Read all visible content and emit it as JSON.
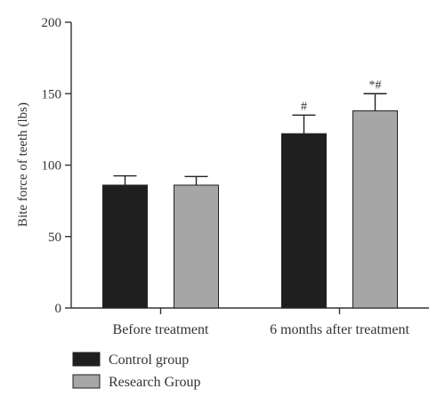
{
  "chart_data": {
    "type": "bar",
    "title": "",
    "xlabel": "",
    "ylabel": "Bite force of teeth (lbs)",
    "ylim": [
      0,
      200
    ],
    "yticks": [
      0,
      50,
      100,
      150,
      200
    ],
    "categories": [
      "Before treatment",
      "6 months after treatment"
    ],
    "series": [
      {
        "name": "Control group",
        "color": "#1f1f1f",
        "values": [
          86,
          122
        ],
        "errors": [
          6.5,
          13
        ],
        "annotations": [
          "",
          "#"
        ]
      },
      {
        "name": "Research Group",
        "color": "#a6a6a6",
        "values": [
          86,
          138
        ],
        "errors": [
          6,
          12
        ],
        "annotations": [
          "",
          "*#"
        ]
      }
    ],
    "grid": false,
    "legend_position": "bottom-left"
  }
}
